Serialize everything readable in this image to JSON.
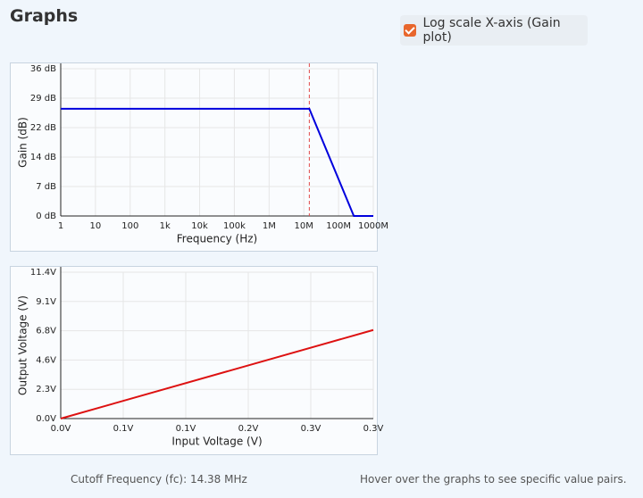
{
  "title": "Graphs",
  "checkbox": {
    "label": "Log scale X-axis (Gain plot)",
    "checked": true
  },
  "chart_data": [
    {
      "type": "line",
      "xlabel": "Frequency (Hz)",
      "ylabel": "Gain (dB)",
      "xscale": "log",
      "grid": true,
      "xlim": [
        1,
        1000000000
      ],
      "xticks": [
        1,
        10,
        100,
        {
          "value": 1000,
          "label": "1k"
        },
        {
          "value": 10000,
          "label": "10k"
        },
        {
          "value": 100000,
          "label": "100k"
        },
        {
          "value": 1000000,
          "label": "1M"
        },
        {
          "value": 10000000,
          "label": "10M"
        },
        {
          "value": 100000000,
          "label": "100M"
        },
        {
          "value": 1000000000,
          "label": "1000M"
        }
      ],
      "ylim": [
        0,
        36
      ],
      "yticks": [
        {
          "value": 0,
          "label": "0 dB"
        },
        {
          "value": 7.2,
          "label": "7 dB"
        },
        {
          "value": 14.4,
          "label": "14 dB"
        },
        {
          "value": 21.6,
          "label": "22 dB"
        },
        {
          "value": 28.8,
          "label": "29 dB"
        },
        {
          "value": 36,
          "label": "36 dB"
        }
      ],
      "x": [
        1,
        14380000,
        275000000,
        1000000000
      ],
      "series": [
        {
          "name": "Gain",
          "color": "#0000dd",
          "values": [
            26.2,
            26.2,
            0,
            0
          ]
        }
      ],
      "cutoff_x": 14380000,
      "cutoff_color": "#e04848"
    },
    {
      "type": "line",
      "xlabel": "Input Voltage (V)",
      "ylabel": "Output Voltage (V)",
      "grid": true,
      "xlim": [
        0,
        0.35
      ],
      "xticks": [
        {
          "value": 0,
          "label": "0.0V"
        },
        {
          "value": 0.07,
          "label": "0.1V"
        },
        {
          "value": 0.14,
          "label": "0.1V"
        },
        {
          "value": 0.21,
          "label": "0.2V"
        },
        {
          "value": 0.28,
          "label": "0.3V"
        },
        {
          "value": 0.35,
          "label": "0.3V"
        }
      ],
      "ylim": [
        0,
        11.4
      ],
      "yticks": [
        {
          "value": 0,
          "label": "0.0V"
        },
        {
          "value": 2.28,
          "label": "2.3V"
        },
        {
          "value": 4.56,
          "label": "4.6V"
        },
        {
          "value": 6.84,
          "label": "6.8V"
        },
        {
          "value": 9.12,
          "label": "9.1V"
        },
        {
          "value": 11.4,
          "label": "11.4V"
        }
      ],
      "x": [
        0,
        0.35
      ],
      "series": [
        {
          "name": "Output",
          "color": "#dd1111",
          "values": [
            0,
            6.9
          ]
        }
      ]
    }
  ],
  "footer": {
    "cutoff": "Cutoff Frequency (fc): 14.38 MHz",
    "hint": "Hover over the graphs to see specific value pairs."
  }
}
